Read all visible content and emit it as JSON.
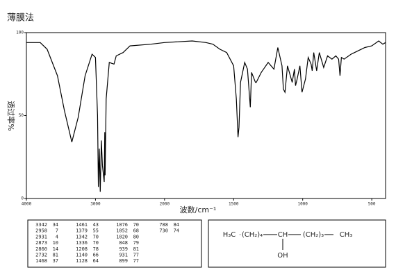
{
  "chart_data": {
    "type": "line",
    "title": "薄膜法",
    "xlabel": "波数/cm⁻¹",
    "ylabel": "透过率%",
    "x": [
      4000,
      3800,
      3700,
      3550,
      3450,
      3342,
      3250,
      3150,
      3050,
      3000,
      2970,
      2958,
      2945,
      2931,
      2915,
      2900,
      2873,
      2865,
      2860,
      2845,
      2800,
      2732,
      2700,
      2600,
      2500,
      2200,
      2000,
      1800,
      1700,
      1650,
      1600,
      1550,
      1500,
      1480,
      1468,
      1461,
      1450,
      1420,
      1400,
      1379,
      1370,
      1342,
      1336,
      1300,
      1250,
      1208,
      1180,
      1150,
      1140,
      1128,
      1110,
      1076,
      1060,
      1052,
      1040,
      1020,
      1005,
      980,
      960,
      939,
      931,
      920,
      899,
      880,
      848,
      820,
      788,
      760,
      740,
      730,
      720,
      700,
      650,
      600,
      550,
      500,
      450,
      420,
      400
    ],
    "values": [
      94,
      94,
      90,
      74,
      53,
      34,
      49,
      74,
      87,
      85,
      50,
      7,
      30,
      4,
      35,
      20,
      10,
      40,
      14,
      60,
      82,
      81,
      86,
      88,
      92,
      93,
      94,
      95,
      94,
      93,
      90,
      88,
      80,
      60,
      37,
      43,
      70,
      82,
      78,
      55,
      76,
      70,
      70,
      76,
      82,
      78,
      91,
      80,
      66,
      64,
      80,
      70,
      78,
      68,
      72,
      80,
      64,
      72,
      85,
      81,
      77,
      88,
      77,
      88,
      79,
      86,
      84,
      86,
      84,
      74,
      85,
      84,
      87,
      89,
      91,
      92,
      95,
      93,
      94
    ],
    "color": "#000000",
    "xlim": [
      4000,
      400
    ],
    "xticks": [
      4000,
      3000,
      2000,
      1500,
      1000,
      500
    ],
    "ylim": [
      0,
      100
    ],
    "yticks": [
      0,
      50,
      100
    ],
    "grid": false
  },
  "peak_table": {
    "columns": [
      [
        [
          3342,
          34
        ],
        [
          2958,
          7
        ],
        [
          2931,
          4
        ],
        [
          2873,
          10
        ],
        [
          2860,
          14
        ],
        [
          2732,
          81
        ],
        [
          1468,
          37
        ]
      ],
      [
        [
          1461,
          43
        ],
        [
          1379,
          55
        ],
        [
          1342,
          70
        ],
        [
          1336,
          70
        ],
        [
          1208,
          78
        ],
        [
          1140,
          66
        ],
        [
          1128,
          64
        ]
      ],
      [
        [
          1076,
          70
        ],
        [
          1052,
          68
        ],
        [
          1020,
          80
        ],
        [
          848,
          79
        ],
        [
          939,
          81
        ],
        [
          931,
          77
        ],
        [
          899,
          77
        ]
      ],
      [
        [
          788,
          84
        ],
        [
          730,
          74
        ]
      ]
    ]
  },
  "structure": {
    "chain": [
      "H₃C",
      "(CH₂)₄",
      "CH",
      "(CH₂)₃",
      "CH₃"
    ],
    "substituent": "OH"
  }
}
